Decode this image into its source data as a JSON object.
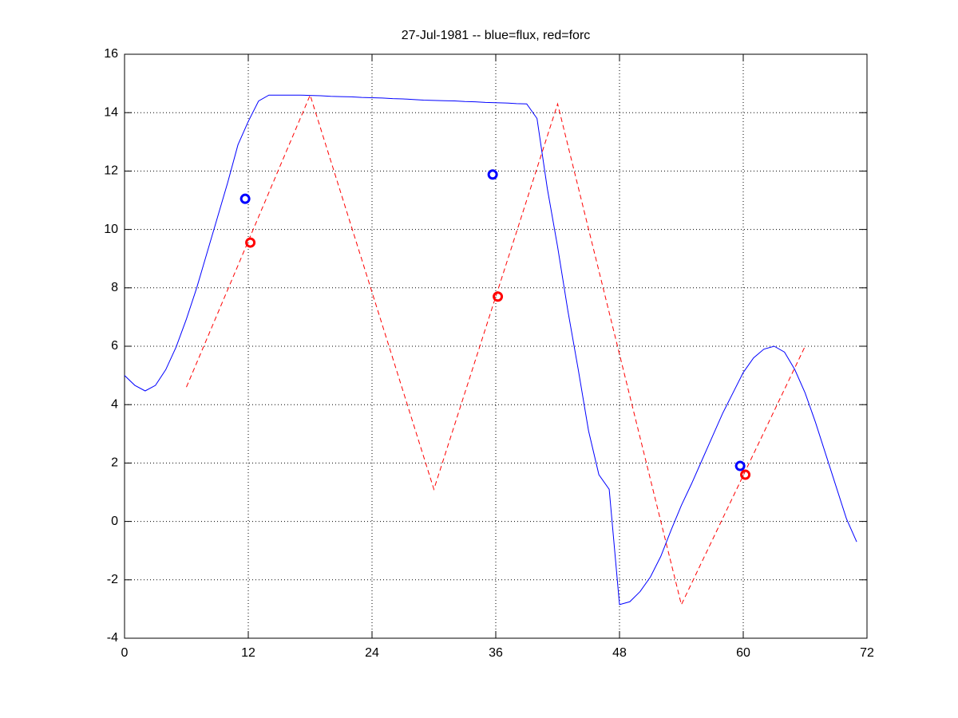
{
  "chart_data": {
    "type": "line",
    "title": "27-Jul-1981 -- blue=flux, red=forc",
    "xlim": [
      0,
      72
    ],
    "xticks": [
      0,
      12,
      24,
      36,
      48,
      60,
      72
    ],
    "ylim": [
      -4,
      16
    ],
    "yticks": [
      -4,
      -2,
      0,
      2,
      4,
      6,
      8,
      10,
      12,
      14,
      16
    ],
    "grid": true,
    "series": [
      {
        "color": "#0000ff",
        "linestyle": "solid",
        "x": [
          0,
          1,
          2,
          3,
          4,
          5,
          6,
          7,
          8,
          9,
          10,
          11,
          12,
          13,
          14,
          15,
          16,
          17,
          18,
          19,
          20,
          21,
          22,
          23,
          24,
          25,
          26,
          27,
          28,
          29,
          30,
          31,
          32,
          33,
          34,
          35,
          36,
          37,
          38,
          39,
          40,
          41,
          42,
          43,
          44,
          45,
          46,
          47,
          48,
          49,
          50,
          51,
          52,
          53,
          54,
          55,
          56,
          57,
          58,
          59,
          60,
          61,
          62,
          63,
          64,
          65,
          66,
          67,
          68,
          69,
          70,
          71
        ],
        "values": [
          5.0,
          4.66,
          4.47,
          4.66,
          5.2,
          5.97,
          6.93,
          8.0,
          9.2,
          10.4,
          11.6,
          12.9,
          13.7,
          14.4,
          14.6,
          14.6,
          14.6,
          14.6,
          14.59,
          14.58,
          14.56,
          14.55,
          14.54,
          14.52,
          14.51,
          14.5,
          14.48,
          14.47,
          14.45,
          14.43,
          14.42,
          14.41,
          14.4,
          14.38,
          14.37,
          14.35,
          14.34,
          14.33,
          14.31,
          14.3,
          13.8,
          11.4,
          9.4,
          7.2,
          5.2,
          3.1,
          1.6,
          1.1,
          -2.85,
          -2.75,
          -2.4,
          -1.9,
          -1.2,
          -0.3,
          0.55,
          1.3,
          2.1,
          2.9,
          3.7,
          4.4,
          5.1,
          5.6,
          5.9,
          6.0,
          5.8,
          5.2,
          4.4,
          3.4,
          2.3,
          1.2,
          0.1,
          -0.7
        ]
      },
      {
        "color": "#ff0000",
        "linestyle": "dashed",
        "x": [
          6,
          18,
          30,
          42,
          54,
          66
        ],
        "values": [
          4.6,
          14.6,
          1.1,
          14.3,
          -2.85,
          6.0
        ]
      },
      {
        "color": "#0000ff",
        "marker": "circle",
        "x": [
          11.7,
          35.7,
          59.7
        ],
        "values": [
          11.05,
          11.88,
          1.9
        ]
      },
      {
        "color": "#ff0000",
        "marker": "circle",
        "x": [
          12.2,
          36.2,
          60.2
        ],
        "values": [
          9.55,
          7.7,
          1.6
        ]
      }
    ]
  }
}
